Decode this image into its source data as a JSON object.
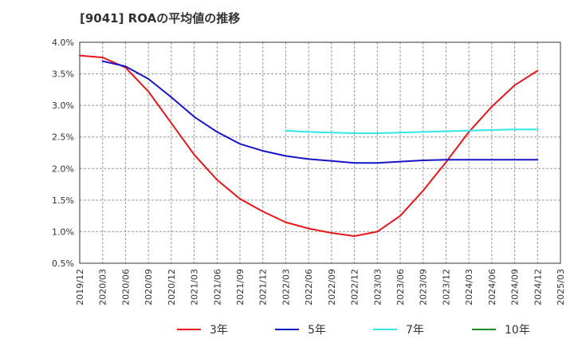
{
  "chart_data": {
    "type": "line",
    "title": "[9041]  ROAの平均値の推移",
    "xlabel": "",
    "ylabel": "",
    "ylim": [
      0.5,
      4.0
    ],
    "y_ticks": [
      0.5,
      1.0,
      1.5,
      2.0,
      2.5,
      3.0,
      3.5,
      4.0
    ],
    "y_tick_labels": [
      "0.5%",
      "1.0%",
      "1.5%",
      "2.0%",
      "2.5%",
      "3.0%",
      "3.5%",
      "4.0%"
    ],
    "x": [
      "2019/12",
      "2020/03",
      "2020/06",
      "2020/09",
      "2020/12",
      "2021/03",
      "2021/06",
      "2021/09",
      "2021/12",
      "2022/03",
      "2022/06",
      "2022/09",
      "2022/12",
      "2023/03",
      "2023/06",
      "2023/09",
      "2023/12",
      "2024/03",
      "2024/06",
      "2024/09",
      "2024/12",
      "2025/03"
    ],
    "grid": true,
    "legend_position": "bottom",
    "series": [
      {
        "name": "3年",
        "color": "#e8161b",
        "values": [
          3.79,
          3.76,
          3.6,
          3.22,
          2.72,
          2.22,
          1.82,
          1.52,
          1.32,
          1.15,
          1.05,
          0.98,
          0.93,
          1.0,
          1.25,
          1.65,
          2.1,
          2.58,
          2.98,
          3.32,
          3.55,
          null
        ]
      },
      {
        "name": "5年",
        "color": "#1515c8",
        "values": [
          null,
          3.7,
          3.62,
          3.42,
          3.13,
          2.82,
          2.58,
          2.39,
          2.28,
          2.2,
          2.15,
          2.12,
          2.09,
          2.09,
          2.11,
          2.13,
          2.14,
          2.14,
          2.14,
          2.14,
          2.14,
          null
        ]
      },
      {
        "name": "7年",
        "color": "#33e6e6",
        "values": [
          null,
          null,
          null,
          null,
          null,
          null,
          null,
          null,
          null,
          2.6,
          2.58,
          2.57,
          2.56,
          2.56,
          2.57,
          2.58,
          2.59,
          2.6,
          2.61,
          2.62,
          2.62,
          null
        ]
      },
      {
        "name": "10年",
        "color": "#1e8c1e",
        "values": [
          null,
          null,
          null,
          null,
          null,
          null,
          null,
          null,
          null,
          null,
          null,
          null,
          null,
          null,
          null,
          null,
          null,
          null,
          null,
          null,
          null,
          null
        ]
      }
    ]
  }
}
